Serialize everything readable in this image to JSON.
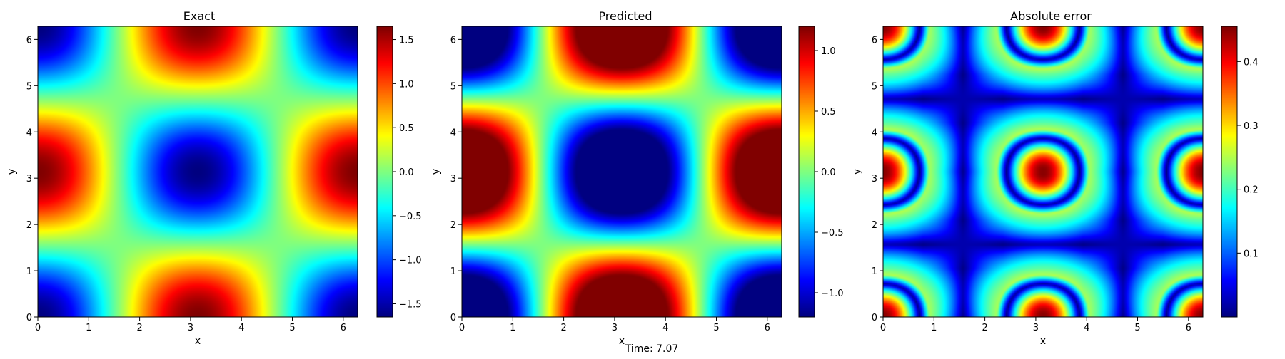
{
  "footer": {
    "time_label": "Time: 7.07"
  },
  "colormap": "jet",
  "chart_data": [
    {
      "type": "heatmap",
      "title": "Exact",
      "xlabel": "x",
      "ylabel": "y",
      "xlim": [
        0,
        6.283
      ],
      "ylim": [
        0,
        6.283
      ],
      "x_ticks": [
        0,
        1,
        2,
        3,
        4,
        5,
        6
      ],
      "y_ticks": [
        0,
        1,
        2,
        3,
        4,
        5,
        6
      ],
      "field": "sin(x)*sin(y) + cos(x)*cos(y)-like product: -cos(x)*cos(y) with range ±1.65",
      "clim": [
        -1.65,
        1.65
      ],
      "colorbar_ticks": [
        -1.5,
        -1.0,
        -0.5,
        0.0,
        0.5,
        1.0,
        1.5
      ],
      "colorbar_labels": [
        "−1.5",
        "−1.0",
        "−0.5",
        "0.0",
        "0.5",
        "1.0",
        "1.5"
      ]
    },
    {
      "type": "heatmap",
      "title": "Predicted",
      "xlabel": "x",
      "ylabel": "y",
      "xlim": [
        0,
        6.283
      ],
      "ylim": [
        0,
        6.283
      ],
      "x_ticks": [
        0,
        1,
        2,
        3,
        4,
        5,
        6
      ],
      "y_ticks": [
        0,
        1,
        2,
        3,
        4,
        5,
        6
      ],
      "field": "saturated -cos(x)*cos(y)",
      "clim": [
        -1.2,
        1.2
      ],
      "colorbar_ticks": [
        -1.0,
        -0.5,
        0.0,
        0.5,
        1.0
      ],
      "colorbar_labels": [
        "−1.0",
        "−0.5",
        "0.0",
        "0.5",
        "1.0"
      ]
    },
    {
      "type": "heatmap",
      "title": "Absolute error",
      "xlabel": "x",
      "ylabel": "y",
      "xlim": [
        0,
        6.283
      ],
      "ylim": [
        0,
        6.283
      ],
      "x_ticks": [
        0,
        1,
        2,
        3,
        4,
        5,
        6
      ],
      "y_ticks": [
        0,
        1,
        2,
        3,
        4,
        5,
        6
      ],
      "field": "|exact - predicted|",
      "clim": [
        0.0,
        0.455
      ],
      "colorbar_ticks": [
        0.1,
        0.2,
        0.3,
        0.4
      ],
      "colorbar_labels": [
        "0.1",
        "0.2",
        "0.3",
        "0.4"
      ]
    }
  ]
}
